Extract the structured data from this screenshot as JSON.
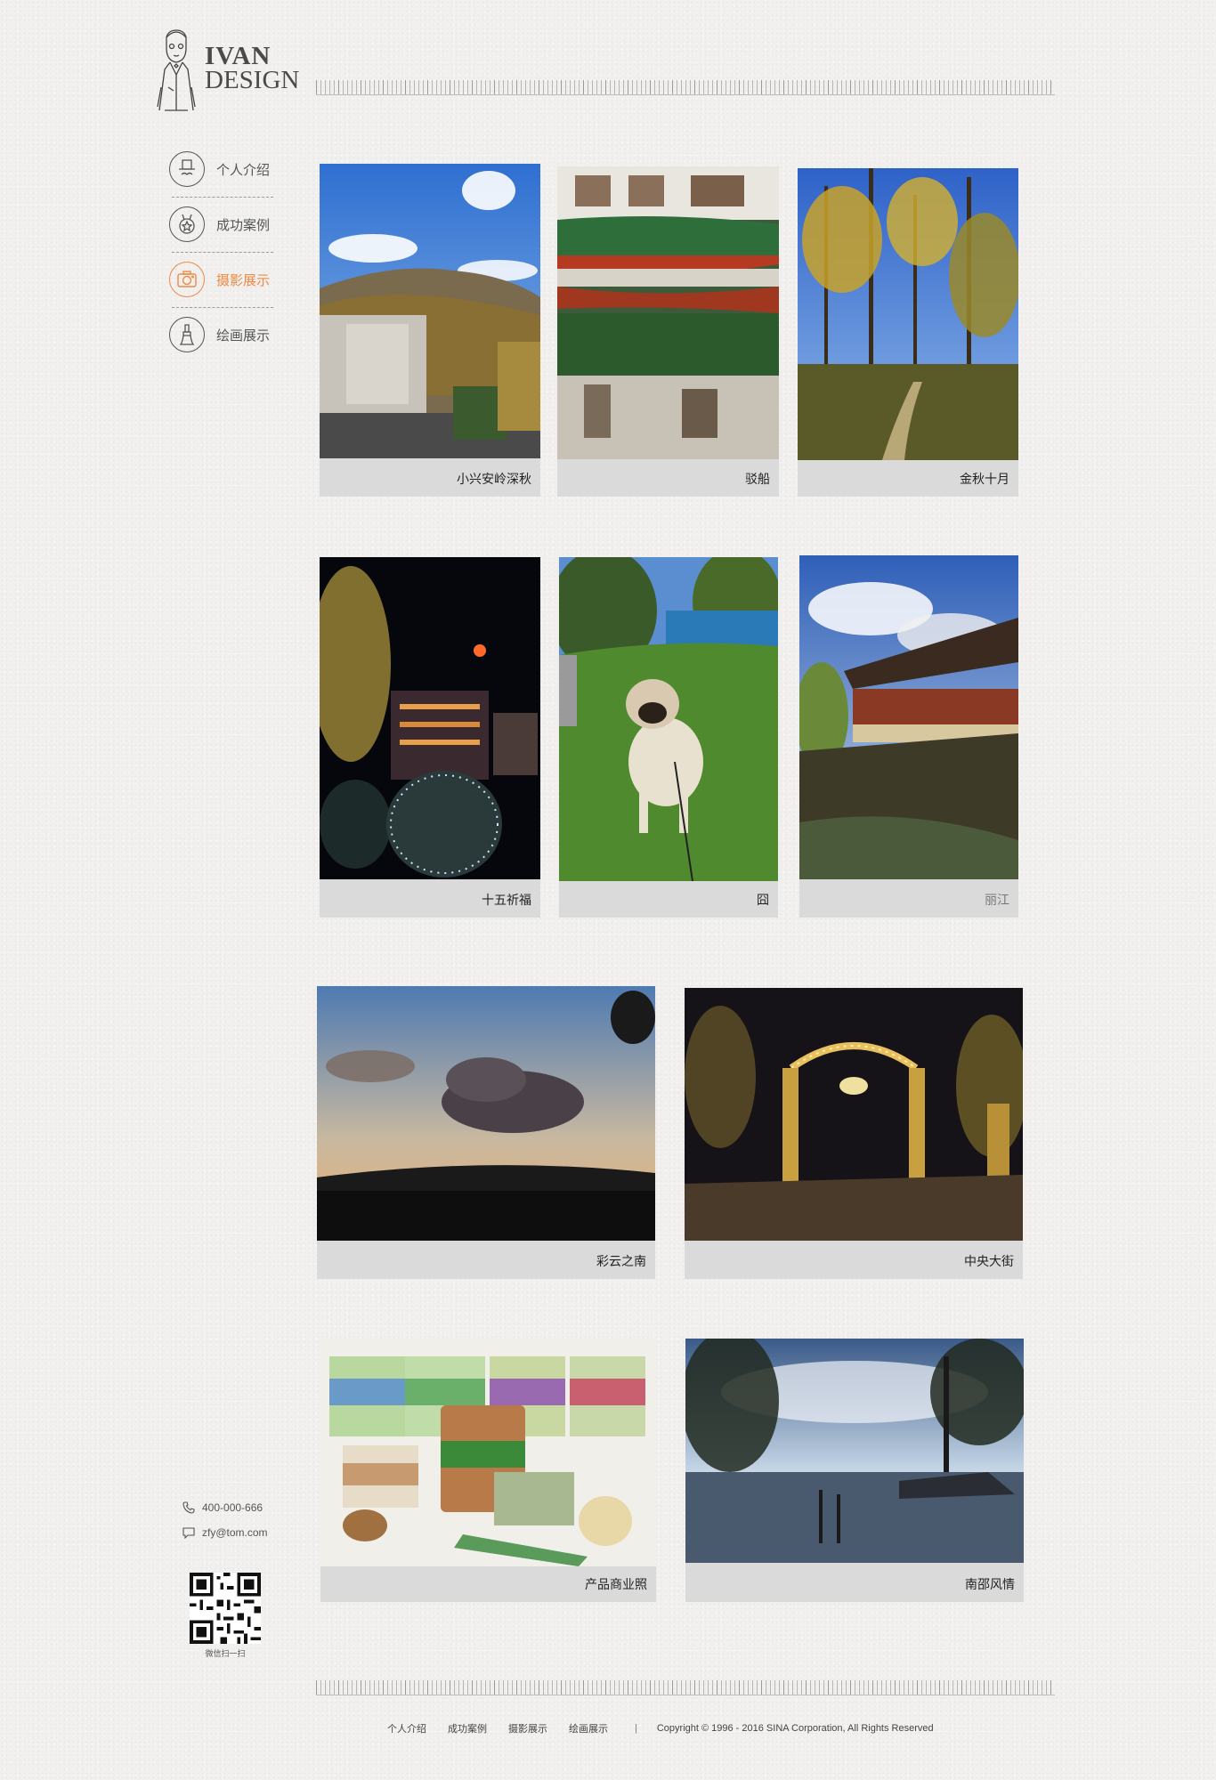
{
  "brand": {
    "line1": "IVAN",
    "line2": "DESIGN"
  },
  "nav": {
    "items": [
      {
        "label": "个人介绍",
        "icon": "hat-mustache-icon"
      },
      {
        "label": "成功案例",
        "icon": "medal-icon"
      },
      {
        "label": "摄影展示",
        "icon": "camera-icon",
        "active": true
      },
      {
        "label": "绘画展示",
        "icon": "paint-brush-icon"
      }
    ],
    "active_color": "#ee8a44"
  },
  "gallery": {
    "photos": [
      {
        "caption": "小兴安岭深秋"
      },
      {
        "caption": "驳船"
      },
      {
        "caption": "金秋十月"
      },
      {
        "caption": "十五祈福"
      },
      {
        "caption": "囧"
      },
      {
        "caption": "丽江"
      },
      {
        "caption": "彩云之南"
      },
      {
        "caption": "中央大街"
      },
      {
        "caption": "产品商业照"
      },
      {
        "caption": "南邵风情"
      }
    ]
  },
  "contact": {
    "phone": "400-000-666",
    "email": "zfy@tom.com",
    "qr_label": "微信扫一扫"
  },
  "footer": {
    "links": [
      "个人介绍",
      "成功案例",
      "摄影展示",
      "绘画展示"
    ],
    "separator": "|",
    "copyright": "Copyright © 1996 - 2016 SINA Corporation, All Rights Reserved"
  }
}
